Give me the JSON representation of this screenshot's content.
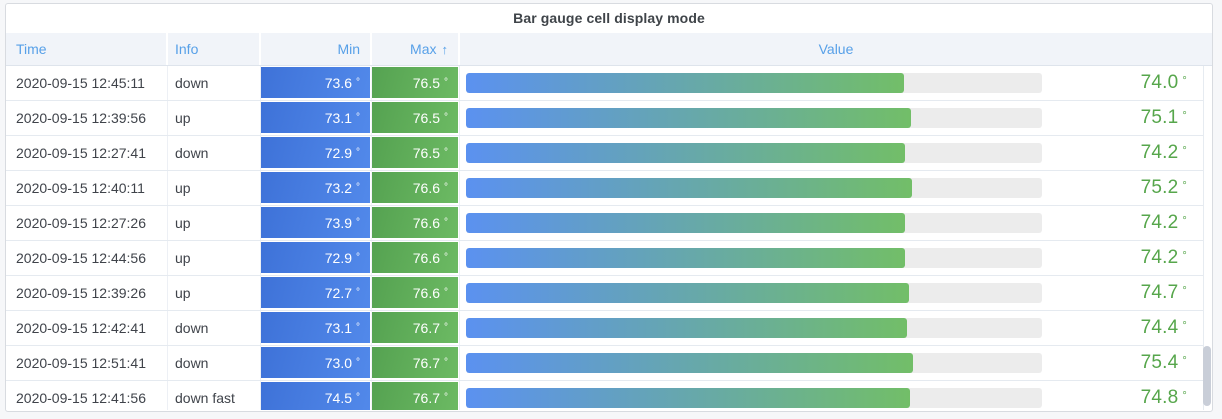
{
  "panel": {
    "title": "Bar gauge cell display mode"
  },
  "table": {
    "columns": [
      {
        "key": "time",
        "label": "Time",
        "align": "left"
      },
      {
        "key": "info",
        "label": "Info",
        "align": "left"
      },
      {
        "key": "min",
        "label": "Min",
        "align": "right"
      },
      {
        "key": "max",
        "label": "Max",
        "align": "right",
        "sorted": "ascending",
        "sort_icon": "↑"
      },
      {
        "key": "value",
        "label": "Value",
        "align": "center"
      }
    ],
    "unit": "°",
    "rows": [
      {
        "time": "2020-09-15 12:45:11",
        "info": "down",
        "min": "73.6",
        "max": "76.5",
        "value": "74.0",
        "value_percent": 76.1
      },
      {
        "time": "2020-09-15 12:39:56",
        "info": "up",
        "min": "73.1",
        "max": "76.5",
        "value": "75.1",
        "value_percent": 77.3
      },
      {
        "time": "2020-09-15 12:27:41",
        "info": "down",
        "min": "72.9",
        "max": "76.5",
        "value": "74.2",
        "value_percent": 76.3
      },
      {
        "time": "2020-09-15 12:40:11",
        "info": "up",
        "min": "73.2",
        "max": "76.6",
        "value": "75.2",
        "value_percent": 77.4
      },
      {
        "time": "2020-09-15 12:27:26",
        "info": "up",
        "min": "73.9",
        "max": "76.6",
        "value": "74.2",
        "value_percent": 76.3
      },
      {
        "time": "2020-09-15 12:44:56",
        "info": "up",
        "min": "72.9",
        "max": "76.6",
        "value": "74.2",
        "value_percent": 76.3
      },
      {
        "time": "2020-09-15 12:39:26",
        "info": "up",
        "min": "72.7",
        "max": "76.6",
        "value": "74.7",
        "value_percent": 76.9
      },
      {
        "time": "2020-09-15 12:42:41",
        "info": "down",
        "min": "73.1",
        "max": "76.7",
        "value": "74.4",
        "value_percent": 76.5
      },
      {
        "time": "2020-09-15 12:51:41",
        "info": "down",
        "min": "73.0",
        "max": "76.7",
        "value": "75.4",
        "value_percent": 77.6
      },
      {
        "time": "2020-09-15 12:41:56",
        "info": "down fast",
        "min": "74.5",
        "max": "76.7",
        "value": "74.8",
        "value_percent": 77.0
      }
    ]
  },
  "colors": {
    "header_text_blue": "#57a0e8",
    "min_cell_blue_start": "#3e72d8",
    "min_cell_blue_end": "#5289ea",
    "max_cell_green_start": "#55a251",
    "max_cell_green_end": "#6cba63",
    "bar_gradient_start": "#5b91f0",
    "bar_gradient_end": "#72be68",
    "bar_track_gray": "#ececec",
    "value_text_green": "#56a64b",
    "title_text": "#3f4449"
  },
  "scrollbar": {
    "visible": true,
    "position": "bottom-right"
  }
}
